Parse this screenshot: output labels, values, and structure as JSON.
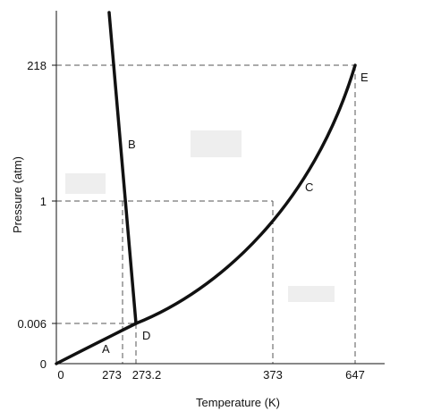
{
  "diagram": {
    "axes": {
      "x_title": "Temperature (K)",
      "y_title": "Pressure (atm)",
      "x_ticks": [
        "0",
        "273",
        "273.2",
        "373",
        "647"
      ],
      "y_ticks": [
        "218",
        "1",
        "0.006",
        "0"
      ]
    },
    "point_labels": {
      "a": "A",
      "b": "B",
      "c": "C",
      "d": "D",
      "e": "E"
    },
    "colors": {
      "curve": "#111111",
      "guide": "#555555",
      "blank_box": "#eeeeee"
    }
  }
}
